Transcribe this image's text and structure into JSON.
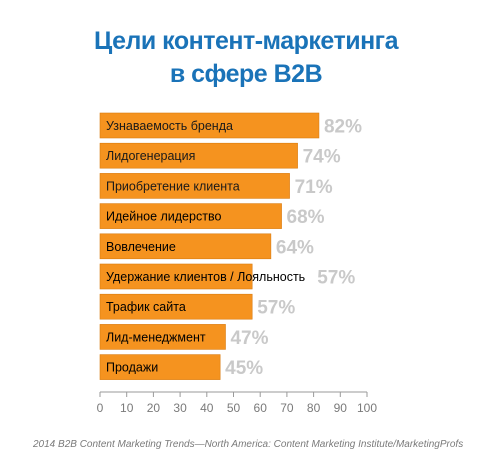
{
  "chart_data": {
    "type": "bar",
    "orientation": "horizontal",
    "title_lines": [
      "Цели контент-маркетинга",
      "в сфере B2B"
    ],
    "categories": [
      "Узнаваемость бренда",
      "Лидогенерация",
      "Приобретение клиента",
      "Идейное лидерство",
      "Вовлечение",
      "Удержание клиентов / Лояльность",
      "Трафик сайта",
      "Лид-менеджмент",
      "Продажи"
    ],
    "values": [
      82,
      74,
      71,
      68,
      64,
      57,
      57,
      47,
      45
    ],
    "value_labels": [
      "82%",
      "74%",
      "71%",
      "68%",
      "64%",
      "57%",
      "57%",
      "47%",
      "45%"
    ],
    "xlim": [
      0,
      100
    ],
    "xticks": [
      0,
      10,
      20,
      30,
      40,
      50,
      60,
      70,
      80,
      90,
      100
    ],
    "xlabel": "",
    "ylabel": "",
    "grid": false,
    "legend": "none",
    "source": "2014 B2B Content Marketing Trends—North America: Content Marketing Institute/MarketingProfs"
  },
  "colors": {
    "bar": "#f5931f",
    "bar_stroke": "#d97c12",
    "title": "#1a73b8",
    "value_text": "#c9c9c9",
    "axis": "#9a9a9a",
    "tick_text": "#7a7a7a"
  }
}
